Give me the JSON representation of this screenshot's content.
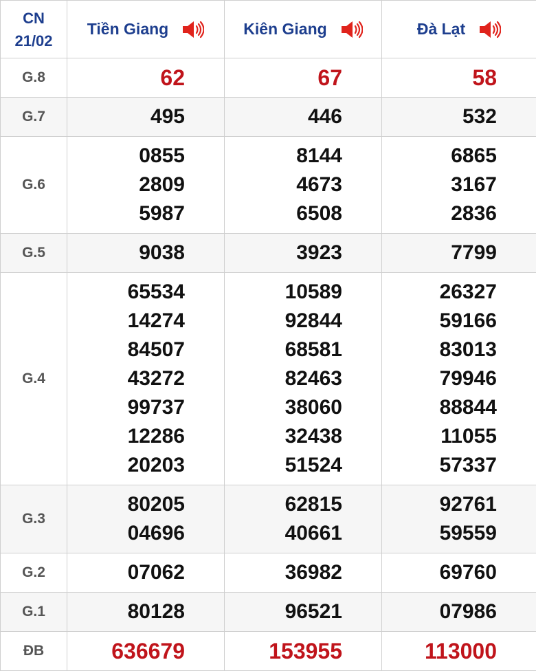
{
  "header": {
    "day": "CN",
    "date": "21/02",
    "provinces": [
      "Tiền Giang",
      "Kiên Giang",
      "Đà Lạt"
    ]
  },
  "rows": [
    {
      "label": "G.8",
      "cells": [
        [
          "62"
        ],
        [
          "67"
        ],
        [
          "58"
        ]
      ]
    },
    {
      "label": "G.7",
      "cells": [
        [
          "495"
        ],
        [
          "446"
        ],
        [
          "532"
        ]
      ]
    },
    {
      "label": "G.6",
      "cells": [
        [
          "0855",
          "2809",
          "5987"
        ],
        [
          "8144",
          "4673",
          "6508"
        ],
        [
          "6865",
          "3167",
          "2836"
        ]
      ]
    },
    {
      "label": "G.5",
      "cells": [
        [
          "9038"
        ],
        [
          "3923"
        ],
        [
          "7799"
        ]
      ]
    },
    {
      "label": "G.4",
      "cells": [
        [
          "65534",
          "14274",
          "84507",
          "43272",
          "99737",
          "12286",
          "20203"
        ],
        [
          "10589",
          "92844",
          "68581",
          "82463",
          "38060",
          "32438",
          "51524"
        ],
        [
          "26327",
          "59166",
          "83013",
          "79946",
          "88844",
          "11055",
          "57337"
        ]
      ]
    },
    {
      "label": "G.3",
      "cells": [
        [
          "80205",
          "04696"
        ],
        [
          "62815",
          "40661"
        ],
        [
          "92761",
          "59559"
        ]
      ]
    },
    {
      "label": "G.2",
      "cells": [
        [
          "07062"
        ],
        [
          "36982"
        ],
        [
          "69760"
        ]
      ]
    },
    {
      "label": "G.1",
      "cells": [
        [
          "80128"
        ],
        [
          "96521"
        ],
        [
          "07986"
        ]
      ]
    },
    {
      "label": "ĐB",
      "cells": [
        [
          "636679"
        ],
        [
          "153955"
        ],
        [
          "113000"
        ]
      ]
    }
  ]
}
